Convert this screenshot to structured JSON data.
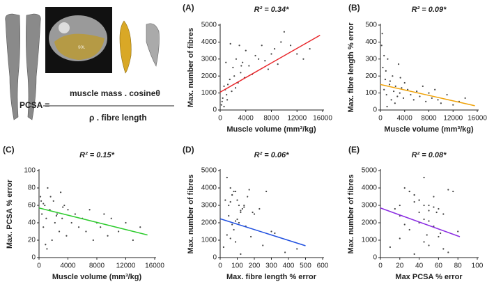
{
  "formula": {
    "lhs": "PCSA =",
    "numerator": "muscle mass . cosineθ",
    "denominator": "ρ . fibre length",
    "mri_label": "SOL"
  },
  "chart_data": [
    {
      "type": "scatter",
      "panel": "(A)",
      "title": "R² = 0.34*",
      "xlabel": "Muscle volume (mm³/kg)",
      "ylabel": "Max. number of fibres",
      "color": "#444",
      "x": [
        200,
        400,
        600,
        800,
        1000,
        1200,
        1500,
        1800,
        2000,
        2200,
        2500,
        2800,
        3000,
        3200,
        3500,
        3800,
        4000,
        4500,
        5000,
        5500,
        6000,
        6500,
        7000,
        7500,
        8000,
        8500,
        9000,
        9500,
        10000,
        11000,
        12000,
        13000,
        14000,
        300,
        900,
        1600,
        2400,
        3300,
        600,
        1100
      ],
      "y": [
        300,
        700,
        200,
        1200,
        900,
        1500,
        1800,
        1100,
        2500,
        2000,
        3000,
        1600,
        3800,
        2200,
        2800,
        1900,
        3500,
        2600,
        2100,
        3200,
        3000,
        3800,
        2900,
        2400,
        3300,
        3600,
        2700,
        4000,
        4600,
        3800,
        3300,
        3000,
        3600,
        500,
        2800,
        3900,
        1300,
        2600,
        1400,
        600
      ],
      "xlim": [
        0,
        16000
      ],
      "xticks": [
        0,
        4000,
        8000,
        12000,
        16000
      ],
      "ylim": [
        0,
        5000
      ],
      "yticks": [
        0,
        1000,
        2000,
        3000,
        4000,
        5000
      ],
      "fit": {
        "color": "#e8262a",
        "x": [
          0,
          15600
        ],
        "y": [
          1050,
          4400
        ]
      }
    },
    {
      "type": "scatter",
      "panel": "(B)",
      "title": "R² = 0.09*",
      "xlabel": "Muscle volume (mm³/kg)",
      "ylabel": "Max. fibre length % error",
      "color": "#444",
      "x": [
        200,
        400,
        600,
        800,
        1000,
        1200,
        1500,
        1800,
        2000,
        2200,
        2500,
        2800,
        3000,
        3200,
        3500,
        3800,
        4000,
        4500,
        5000,
        5500,
        6000,
        6500,
        7000,
        7500,
        8000,
        8500,
        9000,
        9500,
        10000,
        11000,
        12000,
        13000,
        14000,
        300,
        900,
        1600,
        2400,
        3300,
        600,
        1100
      ],
      "y": [
        380,
        250,
        120,
        180,
        90,
        300,
        150,
        60,
        200,
        110,
        140,
        80,
        270,
        100,
        130,
        70,
        160,
        120,
        90,
        60,
        110,
        80,
        140,
        50,
        100,
        70,
        120,
        60,
        40,
        90,
        30,
        50,
        70,
        450,
        230,
        170,
        40,
        190,
        320,
        20
      ],
      "xlim": [
        0,
        16000
      ],
      "xticks": [
        0,
        4000,
        8000,
        12000,
        16000
      ],
      "ylim": [
        0,
        500
      ],
      "yticks": [
        0,
        100,
        200,
        300,
        400,
        500
      ],
      "fit": {
        "color": "#f0a30a",
        "x": [
          0,
          15600
        ],
        "y": [
          150,
          25
        ]
      }
    },
    {
      "type": "scatter",
      "panel": "(C)",
      "title": "R² = 0.15*",
      "xlabel": "Muscle volume (mm³/kg)",
      "ylabel": "Max. PCSA % error",
      "color": "#444",
      "x": [
        200,
        400,
        600,
        800,
        1000,
        1200,
        1500,
        1800,
        2000,
        2200,
        2500,
        2800,
        3000,
        3200,
        3500,
        3800,
        4000,
        4500,
        5000,
        5500,
        6000,
        6500,
        7000,
        7500,
        8000,
        8500,
        9000,
        9500,
        10000,
        11000,
        12000,
        13000,
        14000,
        300,
        900,
        1600,
        2400,
        3300,
        600,
        1100
      ],
      "y": [
        70,
        50,
        35,
        60,
        45,
        80,
        55,
        20,
        65,
        40,
        50,
        30,
        75,
        45,
        60,
        25,
        55,
        40,
        50,
        35,
        45,
        30,
        55,
        20,
        40,
        35,
        50,
        25,
        45,
        30,
        40,
        20,
        35,
        65,
        15,
        70,
        48,
        58,
        62,
        10
      ],
      "xlim": [
        0,
        16000
      ],
      "xticks": [
        0,
        4000,
        8000,
        12000,
        16000
      ],
      "ylim": [
        0,
        100
      ],
      "yticks": [
        0,
        20,
        40,
        60,
        80,
        100
      ],
      "fit": {
        "color": "#2ecc2e",
        "x": [
          0,
          15000
        ],
        "y": [
          57,
          26
        ]
      }
    },
    {
      "type": "scatter",
      "panel": "(D)",
      "title": "R² = 0.06*",
      "xlabel": "Max. fibre length % error",
      "ylabel": "Max. number of fibres",
      "color": "#444",
      "x": [
        380,
        250,
        120,
        180,
        90,
        300,
        150,
        60,
        200,
        110,
        140,
        80,
        270,
        100,
        130,
        70,
        160,
        120,
        90,
        60,
        110,
        80,
        140,
        50,
        100,
        70,
        120,
        60,
        40,
        90,
        30,
        50,
        70,
        450,
        230,
        170,
        40,
        190,
        320,
        20
      ],
      "y": [
        300,
        700,
        200,
        1200,
        900,
        1500,
        1800,
        1100,
        2500,
        2000,
        3000,
        1600,
        3800,
        2200,
        2800,
        1900,
        3500,
        2600,
        2100,
        3200,
        3000,
        3800,
        2900,
        2400,
        3300,
        3600,
        2700,
        4000,
        4600,
        3800,
        3300,
        3000,
        3600,
        500,
        2800,
        3900,
        1300,
        2600,
        1400,
        600
      ],
      "xlim": [
        0,
        600
      ],
      "xticks": [
        0,
        100,
        200,
        300,
        400,
        500,
        600
      ],
      "ylim": [
        0,
        5000
      ],
      "yticks": [
        0,
        1000,
        2000,
        3000,
        4000,
        5000
      ],
      "fit": {
        "color": "#1f4fe0",
        "x": [
          0,
          500
        ],
        "y": [
          2230,
          680
        ]
      }
    },
    {
      "type": "scatter",
      "panel": "(E)",
      "title": "R² = 0.08*",
      "xlabel": "Max PCSA % error",
      "ylabel": "Max. number of fibres",
      "color": "#444",
      "x": [
        70,
        50,
        35,
        60,
        45,
        80,
        55,
        20,
        65,
        40,
        50,
        30,
        75,
        45,
        60,
        25,
        55,
        40,
        50,
        35,
        45,
        30,
        55,
        20,
        40,
        35,
        50,
        25,
        45,
        30,
        40,
        20,
        35,
        65,
        15,
        70,
        48,
        58,
        62,
        10
      ],
      "y": [
        300,
        700,
        200,
        1200,
        900,
        1500,
        1800,
        1100,
        2500,
        2000,
        3000,
        1600,
        3800,
        2200,
        2800,
        1900,
        3500,
        2600,
        2100,
        3200,
        3000,
        3800,
        2900,
        2400,
        3300,
        3600,
        2700,
        4000,
        4600,
        3800,
        3300,
        3000,
        3600,
        500,
        2800,
        3900,
        1300,
        2600,
        1400,
        600
      ],
      "xlim": [
        0,
        100
      ],
      "xticks": [
        0,
        20,
        40,
        60,
        80,
        100
      ],
      "ylim": [
        0,
        5000
      ],
      "yticks": [
        0,
        1000,
        2000,
        3000,
        4000,
        5000
      ],
      "fit": {
        "color": "#8a2be2",
        "x": [
          0,
          82
        ],
        "y": [
          2850,
          1200
        ]
      }
    }
  ]
}
